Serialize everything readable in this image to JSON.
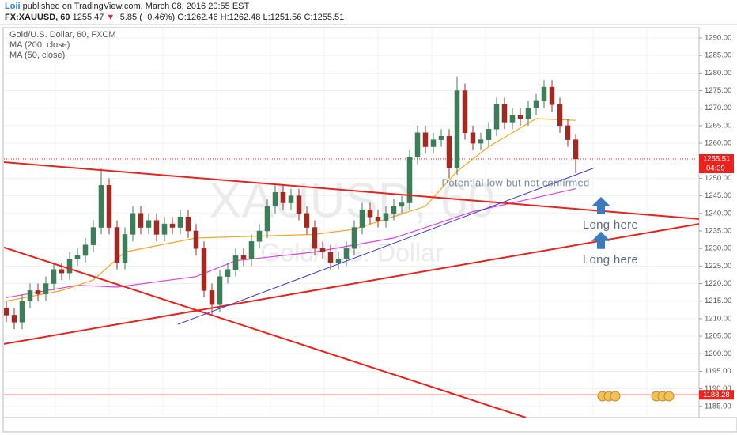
{
  "header": {
    "author": "Loii",
    "published": "published on TradingView.com, March 08, 2016 20:55 EST",
    "symbol": "FX:XAUUSD, 60",
    "last": "1255.47",
    "direction": "▼",
    "change": "−5.85 (−0.46%)",
    "ohlc": [
      "O:1262.46",
      "H:1262.48",
      "L:1251.56",
      "C:1255.51"
    ]
  },
  "chart_data": {
    "type": "candlestick",
    "title": "Gold/U.S. Dollar, 60, FXCM",
    "watermark": "XAUUSD, 60",
    "watermark_subtitle": "Gold/U.S. Dollar",
    "up_color": "#3f7d5a",
    "down_color": "#9e2b25",
    "open": [
      1213,
      1211,
      1209,
      1215,
      1218,
      1217,
      1220,
      1224,
      1223,
      1227,
      1228,
      1231,
      1236,
      1248,
      1236,
      1226,
      1234,
      1240,
      1236,
      1238,
      1234,
      1237,
      1236,
      1239,
      1235,
      1230,
      1218,
      1214,
      1222,
      1224,
      1228,
      1227,
      1232,
      1235,
      1242,
      1246,
      1243,
      1245,
      1240,
      1236,
      1230,
      1229,
      1226,
      1227,
      1230,
      1236,
      1241,
      1239,
      1238,
      1240,
      1242,
      1243,
      1256,
      1263,
      1259,
      1261,
      1262,
      1253,
      1275,
      1263,
      1260,
      1261,
      1264,
      1271,
      1266,
      1268,
      1267,
      1270,
      1272,
      1276,
      1271,
      1265,
      1261
    ],
    "high": [
      1215,
      1213,
      1217,
      1220,
      1220,
      1222,
      1226,
      1226,
      1229,
      1230,
      1233,
      1238,
      1253,
      1250,
      1238,
      1236,
      1242,
      1242,
      1240,
      1240,
      1239,
      1239,
      1241,
      1241,
      1237,
      1232,
      1220,
      1224,
      1226,
      1230,
      1230,
      1234,
      1237,
      1244,
      1248,
      1248,
      1247,
      1247,
      1242,
      1238,
      1232,
      1231,
      1229,
      1232,
      1238,
      1243,
      1243,
      1241,
      1242,
      1244,
      1245,
      1258,
      1265,
      1265,
      1263,
      1264,
      1264,
      1279,
      1277,
      1265,
      1263,
      1266,
      1273,
      1273,
      1270,
      1270,
      1272,
      1274,
      1278,
      1278,
      1273,
      1267,
      1262.48
    ],
    "low": [
      1209,
      1207,
      1207,
      1213,
      1215,
      1215,
      1218,
      1221,
      1221,
      1225,
      1226,
      1229,
      1234,
      1234,
      1224,
      1224,
      1232,
      1234,
      1234,
      1232,
      1232,
      1234,
      1234,
      1233,
      1228,
      1216,
      1211,
      1212,
      1220,
      1222,
      1225,
      1225,
      1230,
      1233,
      1240,
      1241,
      1241,
      1238,
      1234,
      1228,
      1227,
      1224,
      1224,
      1225,
      1228,
      1234,
      1237,
      1236,
      1236,
      1238,
      1240,
      1241,
      1254,
      1257,
      1257,
      1259,
      1250,
      1251,
      1261,
      1258,
      1258,
      1259,
      1262,
      1264,
      1264,
      1265,
      1265,
      1268,
      1270,
      1269,
      1263,
      1259,
      1251.56
    ],
    "close": [
      1211,
      1209,
      1215,
      1218,
      1217,
      1220,
      1224,
      1223,
      1227,
      1228,
      1231,
      1236,
      1248,
      1236,
      1226,
      1234,
      1240,
      1236,
      1238,
      1234,
      1237,
      1236,
      1239,
      1235,
      1230,
      1218,
      1214,
      1222,
      1224,
      1228,
      1227,
      1232,
      1235,
      1242,
      1246,
      1243,
      1245,
      1240,
      1236,
      1230,
      1229,
      1226,
      1227,
      1230,
      1236,
      1241,
      1239,
      1238,
      1240,
      1242,
      1243,
      1256,
      1263,
      1259,
      1261,
      1262,
      1253,
      1275,
      1263,
      1260,
      1261,
      1264,
      1271,
      1266,
      1268,
      1267,
      1270,
      1272,
      1276,
      1271,
      1265,
      1261,
      1255.51
    ],
    "xlim": [
      -0.3,
      87.6
    ],
    "ylim": [
      1181.8,
      1292.7
    ],
    "yticks": [
      {
        "value": 1185,
        "label": "1185.00"
      },
      {
        "value": 1190,
        "label": "1190.00"
      },
      {
        "value": 1195,
        "label": "1195.00"
      },
      {
        "value": 1200,
        "label": "1200.00"
      },
      {
        "value": 1205,
        "label": "1205.00"
      },
      {
        "value": 1210,
        "label": "1210.00"
      },
      {
        "value": 1215,
        "label": "1215.00"
      },
      {
        "value": 1220,
        "label": "1220.00"
      },
      {
        "value": 1225,
        "label": "1225.00"
      },
      {
        "value": 1230,
        "label": "1230.00"
      },
      {
        "value": 1235,
        "label": "1235.00"
      },
      {
        "value": 1240,
        "label": "1240.00"
      },
      {
        "value": 1245,
        "label": "1245.00"
      },
      {
        "value": 1250,
        "label": "1250.00"
      },
      {
        "value": 1255,
        "label": "1255.00"
      },
      {
        "value": 1260,
        "label": "1260.00"
      },
      {
        "value": 1265,
        "label": "1265.00"
      },
      {
        "value": 1270,
        "label": "1270.00"
      },
      {
        "value": 1275,
        "label": "1275.00"
      },
      {
        "value": 1280,
        "label": "1280.00"
      },
      {
        "value": 1285,
        "label": "1285.00"
      },
      {
        "value": 1290,
        "label": "1290.00"
      }
    ],
    "grid": true,
    "series": [
      {
        "name": "MA (200, close)",
        "color": "#e040e0",
        "x": [
          0,
          9,
          14,
          24,
          29,
          39,
          49,
          59,
          65,
          72
        ],
        "values": [
          1216,
          1219.5,
          1219,
          1222,
          1226.5,
          1229,
          1233,
          1240.5,
          1243.5,
          1247
        ]
      },
      {
        "name": "MA (50, close)",
        "color": "#f5a623",
        "x": [
          0,
          7,
          11,
          15,
          24,
          39,
          44,
          53,
          57,
          61,
          67,
          72
        ],
        "values": [
          1215,
          1218,
          1221,
          1229,
          1233,
          1234,
          1235.5,
          1242,
          1252,
          1259,
          1267,
          1266.5
        ]
      }
    ],
    "trend_lines": [
      {
        "color": "#e8231f",
        "x": [
          -0.3,
          87.6
        ],
        "values": [
          1254.6,
          1238.4
        ]
      },
      {
        "color": "#e8231f",
        "x": [
          -0.3,
          87.6
        ],
        "values": [
          1202.8,
          1237.0
        ]
      },
      {
        "color": "#e8231f",
        "x": [
          -0.3,
          65.7
        ],
        "values": [
          1230.3,
          1181.8
        ]
      },
      {
        "color": "#3a3ad0",
        "x": [
          21.7,
          74.4
        ],
        "values": [
          1208.4,
          1253.0
        ]
      }
    ],
    "price_lines": [
      {
        "value": 1255.51,
        "color": "#e8231f",
        "style": "dotted",
        "countdown": "04:39"
      },
      {
        "value": 1188.28,
        "color": "#e8231f",
        "style": "solid"
      }
    ],
    "annotations": [
      {
        "text": "Potential low but not confirmed",
        "x": 64.4,
        "y": 1248.5,
        "color": "#7a8a9a",
        "size": 13
      },
      {
        "text": "Long here",
        "x": 76.4,
        "y": 1236.6,
        "color": "#5a6e80",
        "size": 15,
        "arrow": "up"
      },
      {
        "text": "Long here",
        "x": 76.4,
        "y": 1226.7,
        "color": "#5a6e80",
        "size": 15,
        "arrow": "up"
      }
    ]
  }
}
